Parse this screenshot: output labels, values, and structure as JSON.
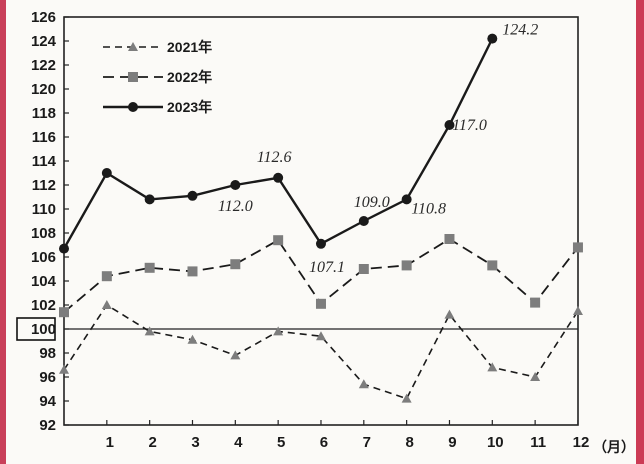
{
  "chart_data": {
    "type": "line",
    "x": [
      "",
      "1",
      "2",
      "3",
      "4",
      "5",
      "6",
      "7",
      "8",
      "9",
      "10",
      "11",
      "12"
    ],
    "x_unit": "（月）",
    "ylim": [
      92,
      126
    ],
    "yticks": [
      92,
      94,
      96,
      98,
      100,
      102,
      104,
      106,
      108,
      110,
      112,
      114,
      116,
      118,
      120,
      122,
      124,
      126
    ],
    "baseline": 100,
    "grid": false,
    "legend_position": "top-left",
    "series": [
      {
        "name": "2021年",
        "marker": "triangle",
        "line": "dashed",
        "values": [
          96.6,
          102.0,
          99.8,
          99.1,
          97.8,
          99.8,
          99.4,
          95.4,
          94.2,
          101.2,
          96.8,
          96.0,
          101.5
        ]
      },
      {
        "name": "2022年",
        "marker": "square",
        "line": "dashed",
        "values": [
          101.4,
          104.4,
          105.1,
          104.8,
          105.4,
          107.4,
          102.1,
          105.0,
          105.3,
          107.5,
          105.3,
          102.2,
          106.8
        ]
      },
      {
        "name": "2023年",
        "marker": "circle",
        "line": "solid",
        "values": [
          106.7,
          113.0,
          110.8,
          111.1,
          112.0,
          112.6,
          107.1,
          109.0,
          110.8,
          117.0,
          124.2,
          null,
          null
        ]
      }
    ],
    "annotations": [
      {
        "text": "124.2",
        "x": "10",
        "y": 124.2
      },
      {
        "text": "117.0",
        "x": "9",
        "y": 117.0
      },
      {
        "text": "112.6",
        "x": "5",
        "y": 112.6
      },
      {
        "text": "112.0",
        "x": "4",
        "y": 112.0
      },
      {
        "text": "109.0",
        "x": "7",
        "y": 109.0
      },
      {
        "text": "110.8",
        "x": "8",
        "y": 110.8
      },
      {
        "text": "107.1",
        "x": "6",
        "y": 107.1
      }
    ]
  }
}
